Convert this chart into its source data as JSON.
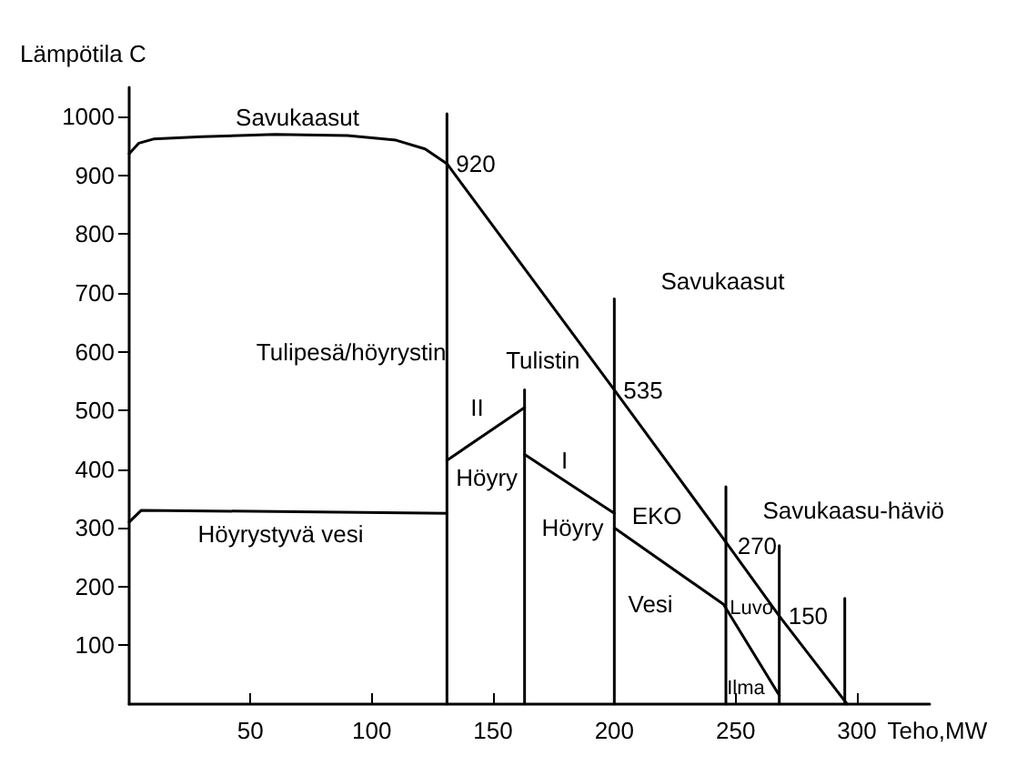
{
  "chart_data": {
    "type": "line",
    "xlabel": "Teho,MW",
    "ylabel": "Lämpötila C",
    "xlim": [
      0,
      330
    ],
    "xticks": [
      50,
      100,
      150,
      200,
      250,
      300
    ],
    "ylim": [
      0,
      1050
    ],
    "yticks": [
      100,
      200,
      300,
      400,
      500,
      600,
      700,
      800,
      900,
      1000
    ],
    "grid": false,
    "marker": "none",
    "line_style": "solid",
    "series": [
      {
        "color": "#000000",
        "x": [
          0,
          4,
          10,
          30,
          60,
          90,
          110,
          122,
          131,
          200,
          247,
          268,
          296
        ],
        "values": [
          937,
          955,
          962,
          966,
          970,
          968,
          960,
          945,
          920,
          535,
          270,
          150,
          0
        ],
        "value_labels": [
          null,
          null,
          null,
          null,
          null,
          null,
          null,
          null,
          "920",
          "535",
          "270",
          "150",
          null
        ]
      },
      {
        "color": "#000000",
        "x": [
          0,
          5,
          131
        ],
        "values": [
          310,
          330,
          325
        ]
      },
      {
        "color": "#000000",
        "x": [
          131,
          163
        ],
        "values": [
          415,
          505
        ]
      },
      {
        "color": "#000000",
        "x": [
          163,
          200
        ],
        "values": [
          425,
          325
        ]
      },
      {
        "color": "#000000",
        "x": [
          200,
          245,
          268
        ],
        "values": [
          300,
          170,
          15
        ]
      },
      {
        "color": "#000000",
        "x": [
          131,
          131
        ],
        "values": [
          0,
          1005
        ]
      },
      {
        "color": "#000000",
        "x": [
          163,
          163
        ],
        "values": [
          0,
          535
        ]
      },
      {
        "color": "#000000",
        "x": [
          200,
          200
        ],
        "values": [
          0,
          690
        ]
      },
      {
        "color": "#000000",
        "x": [
          246,
          246
        ],
        "values": [
          0,
          370
        ]
      },
      {
        "color": "#000000",
        "x": [
          268,
          268
        ],
        "values": [
          0,
          270
        ]
      },
      {
        "color": "#000000",
        "x": [
          295,
          295
        ],
        "values": [
          0,
          180
        ]
      }
    ],
    "annotations": [
      "Savukaasut",
      "Savukaasut",
      "Tulipesä/höyrystin",
      "Tulistin",
      "II",
      "I",
      "Höyry",
      "Höyry",
      "EKO",
      "Vesi",
      "Luvo",
      "Ilma",
      "Höyrystyvä vesi",
      "Savukaasu-häviö"
    ]
  }
}
